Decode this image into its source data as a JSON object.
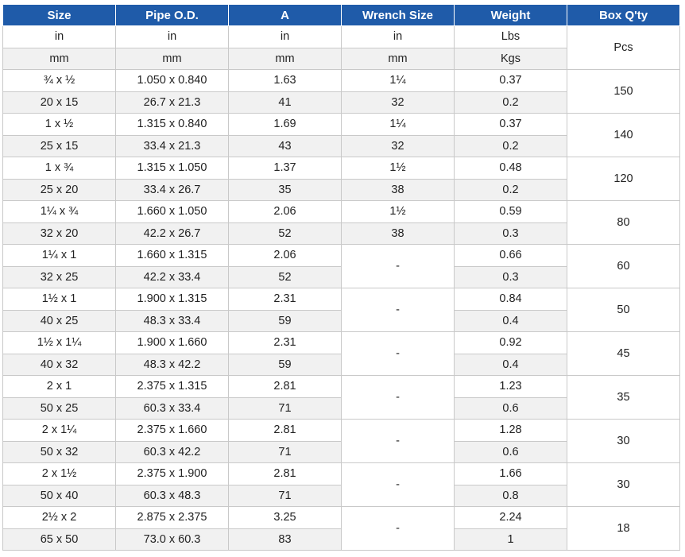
{
  "headers": [
    "Size",
    "Pipe O.D.",
    "A",
    "Wrench Size",
    "Weight",
    "Box Q'ty"
  ],
  "units_in": [
    "in",
    "in",
    "in",
    "in",
    "Lbs"
  ],
  "units_mm": [
    "mm",
    "mm",
    "mm",
    "mm",
    "Kgs"
  ],
  "units_box": "Pcs",
  "groups": [
    {
      "inch": {
        "size": "¾ x ½",
        "od": "1.050 x 0.840",
        "a": "1.63",
        "wrench": "1¼",
        "weight": "0.37"
      },
      "metric": {
        "size": "20 x 15",
        "od": "26.7 x 21.3",
        "a": "41",
        "wrench": "32",
        "weight": "0.2"
      },
      "box": "150"
    },
    {
      "inch": {
        "size": "1 x ½",
        "od": "1.315 x 0.840",
        "a": "1.69",
        "wrench": "1¼",
        "weight": "0.37"
      },
      "metric": {
        "size": "25 x 15",
        "od": "33.4 x 21.3",
        "a": "43",
        "wrench": "32",
        "weight": "0.2"
      },
      "box": "140"
    },
    {
      "inch": {
        "size": "1 x ¾",
        "od": "1.315 x 1.050",
        "a": "1.37",
        "wrench": "1½",
        "weight": "0.48"
      },
      "metric": {
        "size": "25 x 20",
        "od": "33.4 x 26.7",
        "a": "35",
        "wrench": "38",
        "weight": "0.2"
      },
      "box": "120"
    },
    {
      "inch": {
        "size": "1¼ x ¾",
        "od": "1.660 x 1.050",
        "a": "2.06",
        "wrench": "1½",
        "weight": "0.59"
      },
      "metric": {
        "size": "32 x 20",
        "od": "42.2 x 26.7",
        "a": "52",
        "wrench": "38",
        "weight": "0.3"
      },
      "box": "80"
    },
    {
      "inch": {
        "size": "1¼ x 1",
        "od": "1.660 x 1.315",
        "a": "2.06",
        "weight": "0.66"
      },
      "metric": {
        "size": "32 x 25",
        "od": "42.2 x 33.4",
        "a": "52",
        "weight": "0.3"
      },
      "wrench": "-",
      "box": "60"
    },
    {
      "inch": {
        "size": "1½ x 1",
        "od": "1.900 x 1.315",
        "a": "2.31",
        "weight": "0.84"
      },
      "metric": {
        "size": "40 x 25",
        "od": "48.3 x 33.4",
        "a": "59",
        "weight": "0.4"
      },
      "wrench": "-",
      "box": "50"
    },
    {
      "inch": {
        "size": "1½ x 1¼",
        "od": "1.900 x 1.660",
        "a": "2.31",
        "weight": "0.92"
      },
      "metric": {
        "size": "40 x 32",
        "od": "48.3 x 42.2",
        "a": "59",
        "weight": "0.4"
      },
      "wrench": "-",
      "box": "45"
    },
    {
      "inch": {
        "size": "2 x 1",
        "od": "2.375 x 1.315",
        "a": "2.81",
        "weight": "1.23"
      },
      "metric": {
        "size": "50 x 25",
        "od": "60.3 x 33.4",
        "a": "71",
        "weight": "0.6"
      },
      "wrench": "-",
      "box": "35"
    },
    {
      "inch": {
        "size": "2 x 1¼",
        "od": "2.375 x 1.660",
        "a": "2.81",
        "weight": "1.28"
      },
      "metric": {
        "size": "50 x 32",
        "od": "60.3 x 42.2",
        "a": "71",
        "weight": "0.6"
      },
      "wrench": "-",
      "box": "30"
    },
    {
      "inch": {
        "size": "2 x 1½",
        "od": "2.375 x 1.900",
        "a": "2.81",
        "weight": "1.66"
      },
      "metric": {
        "size": "50 x 40",
        "od": "60.3 x 48.3",
        "a": "71",
        "weight": "0.8"
      },
      "wrench": "-",
      "box": "30"
    },
    {
      "inch": {
        "size": "2½ x 2",
        "od": "2.875 x 2.375",
        "a": "3.25",
        "weight": "2.24"
      },
      "metric": {
        "size": "65 x 50",
        "od": "73.0 x 60.3",
        "a": "83",
        "weight": "1"
      },
      "wrench": "-",
      "box": "18"
    }
  ],
  "colors": {
    "header_bg": "#1f5ba9",
    "header_text": "#ffffff",
    "alt_row_bg": "#f1f1f1",
    "border": "#c9c9c9"
  }
}
